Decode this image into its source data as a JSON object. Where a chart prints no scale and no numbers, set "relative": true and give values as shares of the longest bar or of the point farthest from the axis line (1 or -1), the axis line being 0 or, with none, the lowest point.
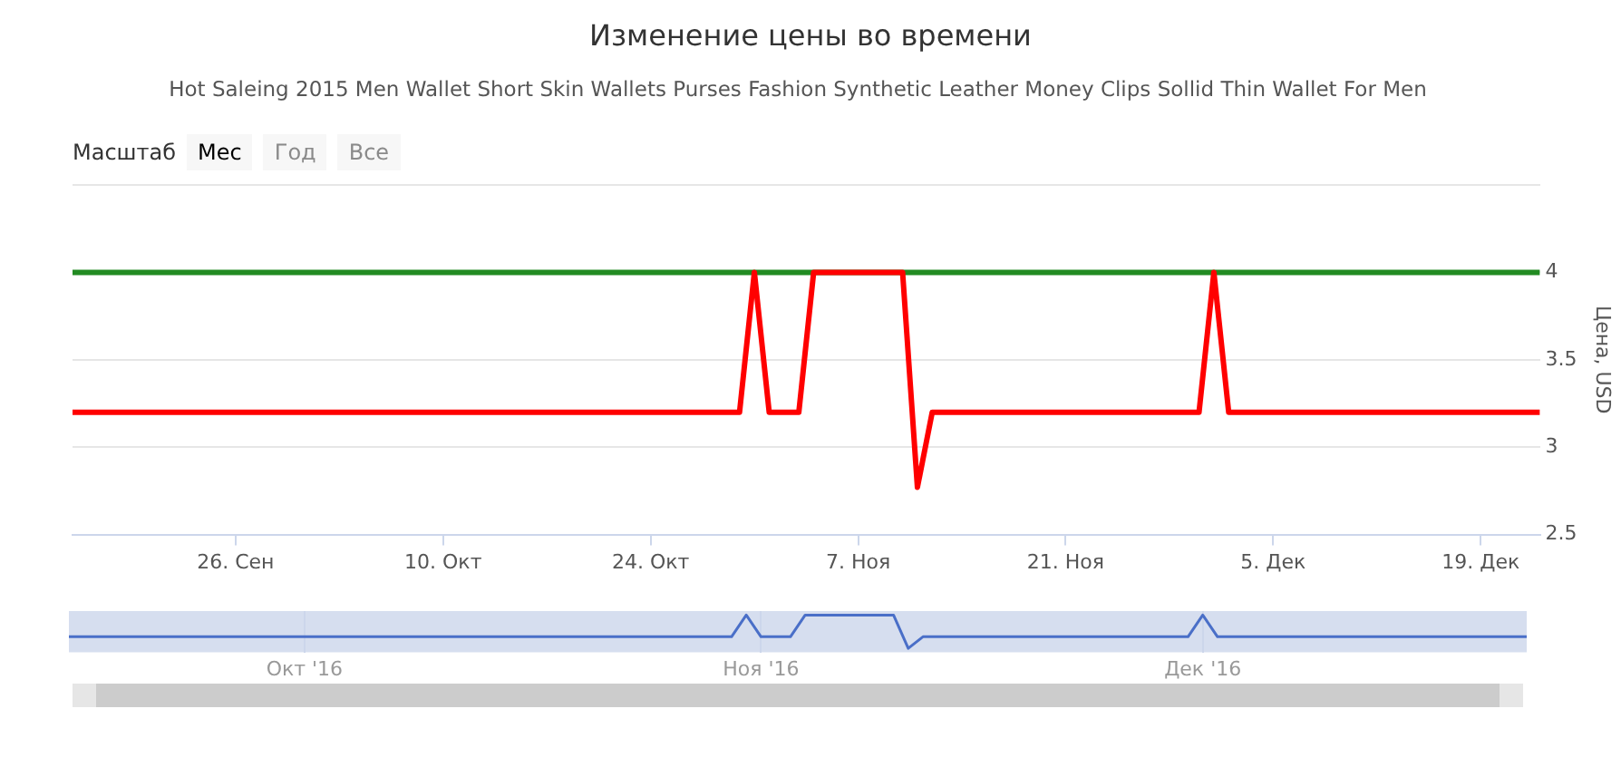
{
  "chart_data": [
    {
      "type": "line",
      "title": "Изменение цены во времени",
      "subtitle": "Hot Saleing 2015 Men Wallet Short Skin Wallets Purses Fashion Synthetic Leather Money Clips Sollid Thin Wallet For Men",
      "ylabel": "Цена, USD",
      "annotations": [
        "Масштаб",
        "Мес",
        "Год",
        "Все"
      ],
      "x": [
        "2016-09-15",
        "2016-10-30",
        "2016-10-31",
        "2016-11-01",
        "2016-11-03",
        "2016-11-04",
        "2016-11-10",
        "2016-11-11",
        "2016-11-12",
        "2016-11-30",
        "2016-12-01",
        "2016-12-02",
        "2016-12-23"
      ],
      "series": [
        {
          "color": "#ff0000",
          "values": [
            3.2,
            3.2,
            4,
            3.2,
            3.2,
            4,
            4,
            2.77,
            3.2,
            3.2,
            4,
            3.2,
            3.2
          ]
        },
        {
          "color": "#228b22",
          "values": [
            4,
            4,
            4,
            4,
            4,
            4,
            4,
            4,
            4,
            4,
            4,
            4,
            4
          ]
        }
      ],
      "xlim": [
        "2016-09-15",
        "2016-12-23"
      ],
      "xticks": [
        {
          "value": "2016-09-26",
          "label": "26. Сен"
        },
        {
          "value": "2016-10-10",
          "label": "10. Окт"
        },
        {
          "value": "2016-10-24",
          "label": "24. Окт"
        },
        {
          "value": "2016-11-07",
          "label": "7. Ноя"
        },
        {
          "value": "2016-11-21",
          "label": "21. Ноя"
        },
        {
          "value": "2016-12-05",
          "label": "5. Дек"
        },
        {
          "value": "2016-12-19",
          "label": "19. Дек"
        }
      ],
      "ylim": [
        2.5,
        4.5
      ],
      "yticks": [
        2.5,
        3,
        3.5,
        4,
        {
          "value": 4.5,
          "label": null
        }
      ],
      "grid": "y"
    },
    {
      "type": "line",
      "relative": true,
      "tick_labels": "x",
      "x": [
        "2016-09-15",
        "2016-10-30",
        "2016-10-31",
        "2016-11-01",
        "2016-11-03",
        "2016-11-04",
        "2016-11-10",
        "2016-11-11",
        "2016-11-12",
        "2016-11-30",
        "2016-12-01",
        "2016-12-02",
        "2016-12-23"
      ],
      "series": [
        {
          "color": "#4a6fc8",
          "values": [
            0.35,
            0.35,
            1,
            0.35,
            0.35,
            1,
            1,
            0,
            0.35,
            0.35,
            1,
            0.35,
            0.35
          ]
        }
      ],
      "xlim": [
        "2016-09-15",
        "2016-12-23"
      ],
      "xticks": [
        {
          "value": "2016-10-01",
          "label": "Окт '16"
        },
        {
          "value": "2016-11-01",
          "label": "Ноя '16"
        },
        {
          "value": "2016-12-01",
          "label": "Дек '16"
        }
      ],
      "bands": [
        {
          "axis": "x",
          "from": "2016-09-15",
          "to": "2016-12-23",
          "color": "#ccd6eb"
        }
      ],
      "grid": "x"
    }
  ]
}
